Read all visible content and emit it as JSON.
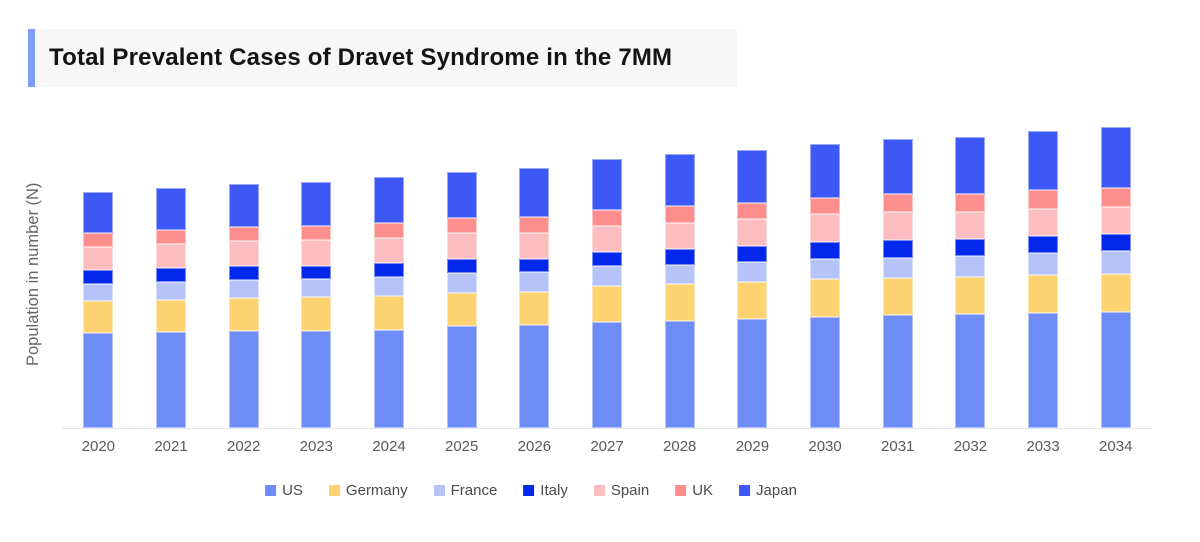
{
  "title": {
    "text": "Total Prevalent Cases of Dravet Syndrome in the 7MM"
  },
  "theme": {
    "accent_color": "#7e9cf8",
    "title_bg": "#f7f7f7",
    "axis_line_color": "#e5e5e9",
    "tick_label_color": "#5a5a5a",
    "legend_text_color": "#4a4a4a"
  },
  "chart_data": {
    "type": "bar",
    "stacked": true,
    "title": "Total Prevalent Cases of Dravet Syndrome in the 7MM",
    "xlabel": "",
    "ylabel": "Population in number (N)",
    "y_axis_tick_labels_visible": false,
    "unit": "relative height units (no numeric y-axis ticks shown in source)",
    "ylim": [
      0,
      308
    ],
    "grid": false,
    "legend_position": "bottom",
    "categories": [
      "2020",
      "2021",
      "2022",
      "2023",
      "2024",
      "2025",
      "2026",
      "2027",
      "2028",
      "2029",
      "2030",
      "2031",
      "2032",
      "2033",
      "2034"
    ],
    "series": [
      {
        "name": "US",
        "color": "#6e8cf6",
        "values": [
          95,
          96,
          97,
          97,
          98,
          102,
          103,
          106,
          107,
          109,
          111,
          113,
          114,
          115,
          116
        ]
      },
      {
        "name": "Germany",
        "color": "#fdd271",
        "values": [
          32,
          32,
          33,
          34,
          34,
          33,
          33,
          36,
          37,
          37,
          38,
          37,
          37,
          38,
          38
        ]
      },
      {
        "name": "France",
        "color": "#b5c3f9",
        "values": [
          17,
          18,
          18,
          18,
          19,
          20,
          20,
          20,
          19,
          20,
          20,
          20,
          21,
          22,
          23
        ]
      },
      {
        "name": "Italy",
        "color": "#0427ec",
        "values": [
          14,
          14,
          14,
          13,
          14,
          14,
          13,
          14,
          16,
          16,
          17,
          18,
          17,
          17,
          17
        ]
      },
      {
        "name": "Spain",
        "color": "#fbbdbf",
        "values": [
          23,
          24,
          25,
          26,
          25,
          26,
          26,
          26,
          26,
          27,
          28,
          28,
          27,
          27,
          27
        ]
      },
      {
        "name": "UK",
        "color": "#fc8e8e",
        "values": [
          14,
          14,
          14,
          14,
          15,
          15,
          16,
          16,
          17,
          16,
          16,
          18,
          18,
          19,
          19
        ]
      },
      {
        "name": "Japan",
        "color": "#3d58f5",
        "values": [
          41,
          42,
          43,
          44,
          46,
          46,
          49,
          51,
          52,
          53,
          54,
          55,
          57,
          59,
          61
        ]
      }
    ],
    "stack_order": "bottom to top follows series array order"
  }
}
